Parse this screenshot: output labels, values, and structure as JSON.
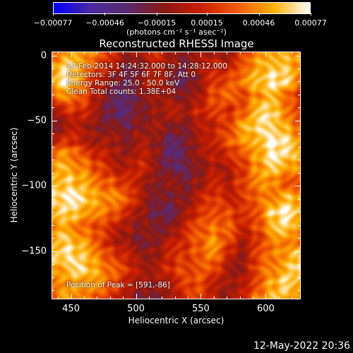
{
  "colorbar": {
    "ticks": [
      "-0.00077",
      "-0.00046",
      "-0.00015",
      "0.00015",
      "0.00046",
      "0.00077"
    ],
    "units": "(photons cm⁻² s⁻¹ asec⁻²)"
  },
  "annotations": {
    "time_range": "14-Feb-2014 14:24:32.000 to 14:28:12.000",
    "detectors": "Detectors: 3F 4F 5F 6F 7F 8F, Att 0",
    "energy": "Energy Range: 25.0 - 50.0 keV",
    "clean": "Clean     Total counts: 1.38E+04",
    "peak": "Position of Peak = [591,-86]"
  },
  "timestamp": "12-May-2022 20:36",
  "chart_data": {
    "type": "heatmap",
    "title": "Reconstructed RHESSI Image",
    "xlabel": "Heliocentric X (arcsec)",
    "ylabel": "Heliocentric Y (arcsec)",
    "xlim": [
      435,
      627
    ],
    "ylim": [
      -187,
      3
    ],
    "xticks": [
      "450",
      "500",
      "550",
      "600"
    ],
    "xtick_values": [
      450,
      500,
      550,
      600
    ],
    "yticks": [
      "0",
      "−50",
      "−100",
      "−150"
    ],
    "ytick_values": [
      0,
      -50,
      -100,
      -150
    ],
    "zlim": [
      -0.00077,
      0.00077
    ],
    "colormap": [
      "#0000ff",
      "#4b2aa0",
      "#5a2a70",
      "#8a1a14",
      "#c81e00",
      "#f25a00",
      "#ffb000",
      "#ffffff"
    ],
    "peak": [
      591,
      -86
    ],
    "grid": [
      [
        0.3,
        0.5,
        0.6,
        0.4,
        0.0,
        -0.3,
        -0.2,
        0.0,
        -0.2,
        -0.4,
        -0.3,
        -0.2,
        -0.3,
        0.1,
        0.5,
        0.7,
        0.6,
        0.6
      ],
      [
        0.6,
        0.8,
        0.6,
        0.2,
        -0.2,
        -0.5,
        -0.4,
        -0.2,
        -0.3,
        -0.5,
        -0.3,
        0.0,
        0.0,
        0.2,
        0.6,
        0.8,
        0.7,
        0.5
      ],
      [
        0.7,
        0.9,
        0.5,
        0.0,
        -0.4,
        -0.6,
        -0.3,
        -0.1,
        -0.4,
        -0.6,
        -0.4,
        0.1,
        0.2,
        0.4,
        0.7,
        0.9,
        0.8,
        0.3
      ],
      [
        0.3,
        0.6,
        0.3,
        -0.2,
        -0.5,
        -0.7,
        -0.5,
        -0.2,
        -0.3,
        -0.5,
        -0.2,
        0.2,
        0.3,
        0.2,
        0.5,
        0.6,
        0.4,
        0.0
      ],
      [
        -0.3,
        0.1,
        0.0,
        -0.3,
        -0.6,
        -0.8,
        -0.5,
        -0.3,
        -0.2,
        -0.3,
        0.0,
        0.1,
        0.0,
        0.3,
        0.7,
        0.8,
        0.5,
        0.2
      ],
      [
        -0.5,
        -0.3,
        -0.2,
        -0.4,
        -0.5,
        -0.6,
        -0.4,
        -0.3,
        -0.4,
        -0.4,
        -0.2,
        -0.1,
        0.2,
        0.6,
        0.8,
        0.9,
        0.6,
        0.3
      ],
      [
        -0.2,
        0.0,
        -0.1,
        -0.3,
        -0.3,
        -0.4,
        -0.2,
        -0.4,
        -0.6,
        -0.5,
        -0.3,
        0.0,
        0.3,
        0.5,
        0.7,
        1.0,
        0.8,
        0.5
      ],
      [
        0.4,
        0.5,
        0.3,
        0.0,
        -0.2,
        -0.3,
        -0.1,
        -0.3,
        -0.7,
        -0.6,
        -0.3,
        -0.1,
        0.0,
        0.2,
        0.6,
        0.9,
        0.8,
        0.6
      ],
      [
        0.6,
        0.7,
        0.5,
        0.2,
        0.0,
        -0.2,
        0.0,
        -0.3,
        -0.6,
        -0.7,
        -0.4,
        -0.2,
        -0.3,
        0.1,
        0.5,
        0.7,
        0.6,
        0.5
      ],
      [
        0.7,
        0.8,
        0.6,
        0.4,
        0.3,
        0.0,
        -0.2,
        -0.4,
        -0.4,
        -0.5,
        -0.3,
        -0.1,
        -0.2,
        0.2,
        0.4,
        0.5,
        0.3,
        0.2
      ],
      [
        0.8,
        0.9,
        0.8,
        0.6,
        0.5,
        0.3,
        -0.1,
        -0.5,
        -0.5,
        -0.4,
        -0.1,
        0.1,
        0.0,
        0.1,
        0.3,
        0.5,
        0.7,
        0.6
      ],
      [
        0.6,
        0.8,
        0.7,
        0.5,
        0.3,
        0.1,
        -0.3,
        -0.6,
        -0.6,
        -0.3,
        0.0,
        0.3,
        0.2,
        0.0,
        0.3,
        0.8,
        0.9,
        0.7
      ],
      [
        0.5,
        0.6,
        0.4,
        0.2,
        0.0,
        -0.2,
        -0.4,
        -0.5,
        -0.4,
        -0.1,
        0.2,
        0.4,
        0.3,
        -0.1,
        0.2,
        0.6,
        0.8,
        0.5
      ],
      [
        0.7,
        0.8,
        0.6,
        0.3,
        -0.1,
        -0.3,
        -0.5,
        -0.4,
        -0.2,
        0.0,
        0.3,
        0.5,
        0.2,
        -0.2,
        0.0,
        0.4,
        0.5,
        0.3
      ],
      [
        0.8,
        0.9,
        0.7,
        0.5,
        0.2,
        -0.1,
        -0.3,
        -0.3,
        -0.1,
        0.1,
        0.3,
        0.4,
        0.0,
        -0.3,
        0.1,
        0.4,
        0.6,
        0.8
      ],
      [
        0.5,
        0.7,
        0.8,
        0.6,
        0.4,
        0.1,
        -0.2,
        -0.2,
        0.0,
        0.2,
        0.3,
        0.2,
        -0.2,
        -0.3,
        0.2,
        0.5,
        0.7,
        0.9
      ],
      [
        0.3,
        0.5,
        0.6,
        0.5,
        0.2,
        0.0,
        -0.3,
        -0.4,
        -0.1,
        0.1,
        0.2,
        0.0,
        -0.3,
        -0.2,
        0.3,
        0.6,
        0.8,
        0.7
      ],
      [
        0.4,
        0.6,
        0.5,
        0.3,
        0.0,
        -0.2,
        -0.5,
        -0.6,
        -0.3,
        0.0,
        0.1,
        -0.1,
        -0.4,
        -0.1,
        0.4,
        0.7,
        0.6,
        0.4
      ]
    ]
  }
}
